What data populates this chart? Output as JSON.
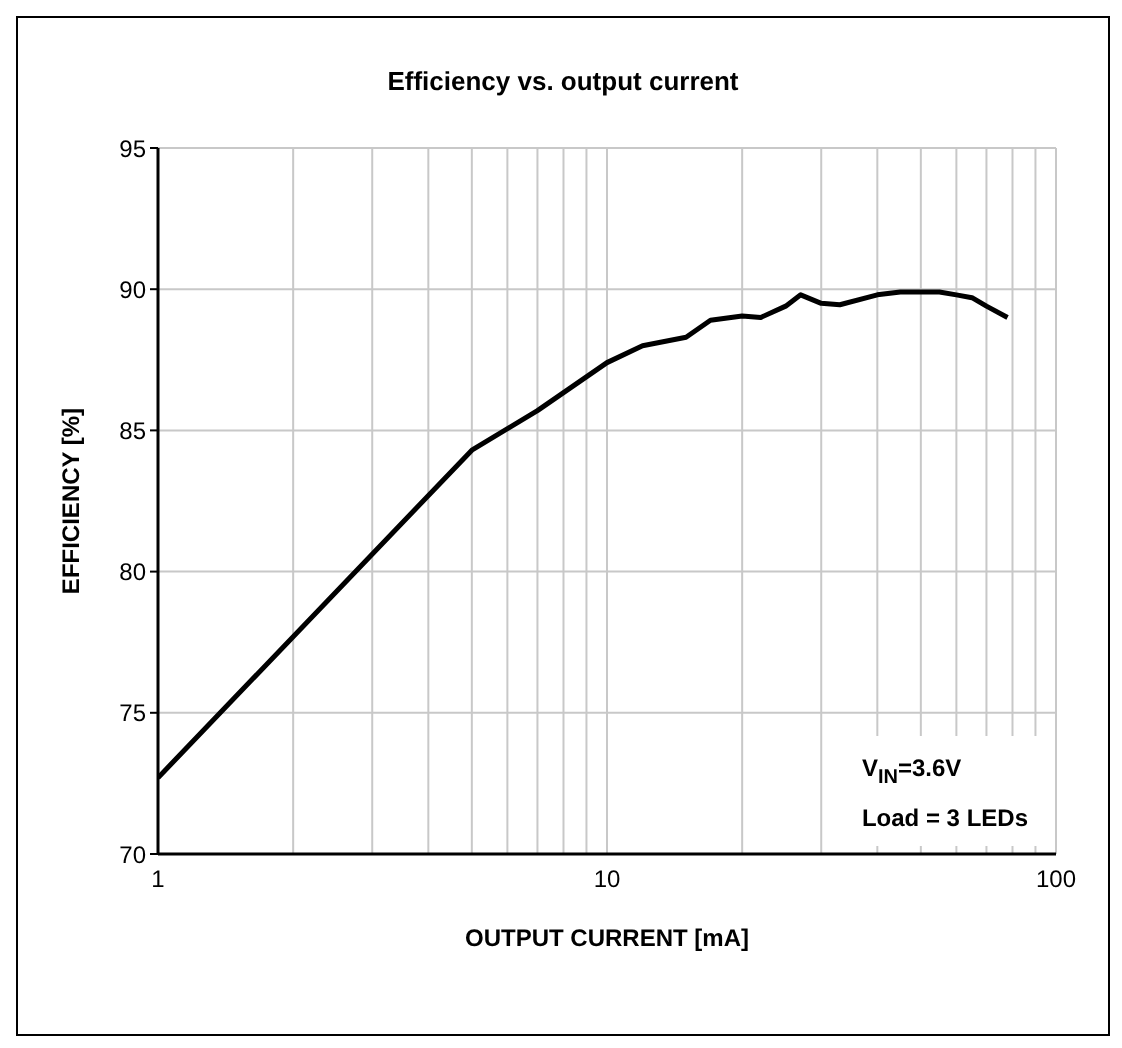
{
  "chart_data": {
    "type": "line",
    "title": "Efficiency vs. output current",
    "xlabel": "OUTPUT CURRENT [mA]",
    "ylabel": "EFFICIENCY [%]",
    "x": [
      1,
      5,
      7,
      10,
      12,
      15,
      17,
      20,
      22,
      25,
      27,
      30,
      33,
      40,
      45,
      55,
      60,
      65,
      70,
      78
    ],
    "series": [
      {
        "color": "#000000",
        "values": [
          72.7,
          84.3,
          85.7,
          87.4,
          88.0,
          88.3,
          88.9,
          89.05,
          89.0,
          89.4,
          89.8,
          89.5,
          89.45,
          89.8,
          89.9,
          89.9,
          89.8,
          89.7,
          89.4,
          89.0
        ]
      }
    ],
    "log": "x",
    "xlim": [
      1,
      100
    ],
    "xticks": [
      1,
      {
        "value": 2,
        "label": null
      },
      {
        "value": 3,
        "label": null
      },
      {
        "value": 4,
        "label": null
      },
      {
        "value": 5,
        "label": null
      },
      {
        "value": 6,
        "label": null
      },
      {
        "value": 7,
        "label": null
      },
      {
        "value": 8,
        "label": null
      },
      {
        "value": 9,
        "label": null
      },
      10,
      {
        "value": 20,
        "label": null
      },
      {
        "value": 30,
        "label": null
      },
      {
        "value": 40,
        "label": null
      },
      {
        "value": 50,
        "label": null
      },
      {
        "value": 60,
        "label": null
      },
      {
        "value": 70,
        "label": null
      },
      {
        "value": 80,
        "label": null
      },
      {
        "value": 90,
        "label": null
      },
      100
    ],
    "ylim": [
      70,
      95
    ],
    "yticks": [
      70,
      75,
      80,
      85,
      90,
      95
    ],
    "grid": true,
    "marker": "none",
    "line_style": "solid",
    "annotations": [
      "V$_{IN}$=3.6V",
      "Load = 3 LEDs"
    ]
  }
}
